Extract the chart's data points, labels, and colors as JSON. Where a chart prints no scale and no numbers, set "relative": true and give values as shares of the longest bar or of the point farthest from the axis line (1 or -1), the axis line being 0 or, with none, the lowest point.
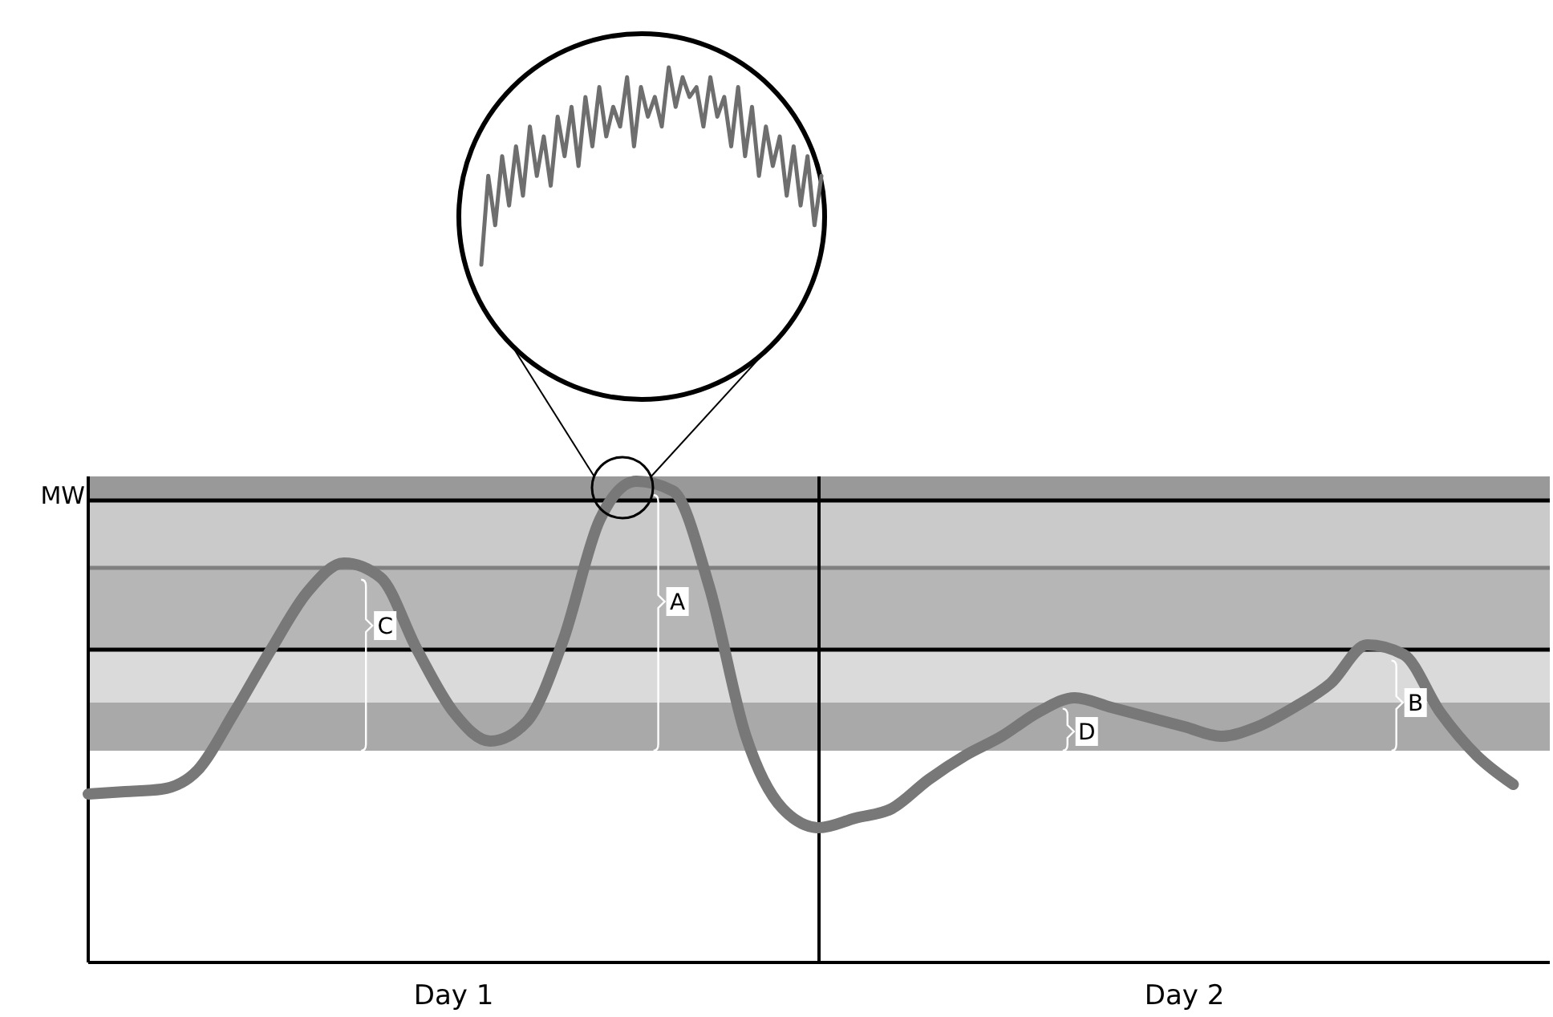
{
  "chart_data": [
    {
      "type": "line",
      "relative": true,
      "categories": [
        null,
        null,
        null,
        null,
        null,
        null,
        null,
        null,
        null,
        null,
        null,
        null,
        null,
        null,
        null,
        null,
        null,
        null,
        null,
        null,
        null,
        null,
        null,
        null,
        null,
        null,
        null,
        null,
        null,
        null,
        null,
        null,
        null,
        null,
        null,
        null,
        null,
        null,
        null,
        null,
        null,
        null,
        null,
        null,
        null,
        null,
        null,
        null,
        null,
        null
      ],
      "series": [
        {
          "color": "#6e6e6e",
          "values": [
            0,
            0.45,
            0.2,
            0.55,
            0.3,
            0.6,
            0.35,
            0.7,
            0.45,
            0.65,
            0.4,
            0.75,
            0.55,
            0.8,
            0.5,
            0.85,
            0.6,
            0.9,
            0.65,
            0.8,
            0.7,
            0.95,
            0.6,
            0.9,
            0.75,
            0.85,
            0.7,
            1,
            0.8,
            0.95,
            0.85,
            0.9,
            0.7,
            0.95,
            0.75,
            0.85,
            0.6,
            0.9,
            0.55,
            0.8,
            0.45,
            0.7,
            0.5,
            0.65,
            0.35,
            0.6,
            0.3,
            0.55,
            0.2,
            0.45
          ]
        }
      ],
      "line_style": "solid",
      "marker": "none"
    },
    {
      "type": "line",
      "relative": true,
      "categories": [
        null,
        null,
        null,
        null,
        null,
        null,
        null,
        null,
        null,
        null,
        "Day 1",
        null,
        null,
        null,
        null,
        null,
        null,
        null,
        null,
        null,
        null,
        null,
        null,
        null,
        null,
        null,
        null,
        null,
        null,
        null,
        "Day 2",
        null,
        null,
        null,
        null,
        null,
        null,
        null,
        null,
        null,
        null
      ],
      "series": [
        {
          "color": "#787878",
          "values": [
            0.35,
            0.355,
            0.36,
            0.4,
            0.52,
            0.65,
            0.77,
            0.83,
            0.8,
            0.65,
            0.52,
            0.46,
            0.5,
            0.67,
            0.92,
            1,
            0.98,
            0.78,
            0.47,
            0.32,
            0.28,
            0.3,
            0.32,
            0.38,
            0.43,
            0.47,
            0.52,
            0.55,
            0.53,
            0.51,
            0.49,
            0.47,
            0.49,
            0.53,
            0.58,
            0.66,
            0.64,
            0.52,
            0.43,
            0.37,
            null
          ]
        }
      ],
      "bands": [
        {
          "axis": "y",
          "from": 0.44,
          "to": 0.54,
          "color": "#a9a9a9"
        },
        {
          "axis": "y",
          "from": 0.54,
          "to": 0.65,
          "color": "#dadada"
        },
        {
          "axis": "y",
          "from": 0.65,
          "to": 0.82,
          "color": "#b6b6b6"
        },
        {
          "axis": "y",
          "from": 0.82,
          "to": 0.96,
          "color": "#cacaca"
        },
        {
          "axis": "y",
          "from": 0.96,
          "to": 1.01,
          "color": "#999999"
        }
      ],
      "ref_lines": [
        {
          "axis": "y",
          "value": 0.96,
          "label": "MW",
          "color": "#000000"
        },
        {
          "axis": "y",
          "value": 0.82,
          "color": "#808080"
        },
        {
          "axis": "y",
          "value": 0.65,
          "color": "#000000"
        }
      ],
      "annotations": [
        "C",
        "A",
        "D",
        "B"
      ],
      "line_style": "solid",
      "marker": "none"
    }
  ]
}
